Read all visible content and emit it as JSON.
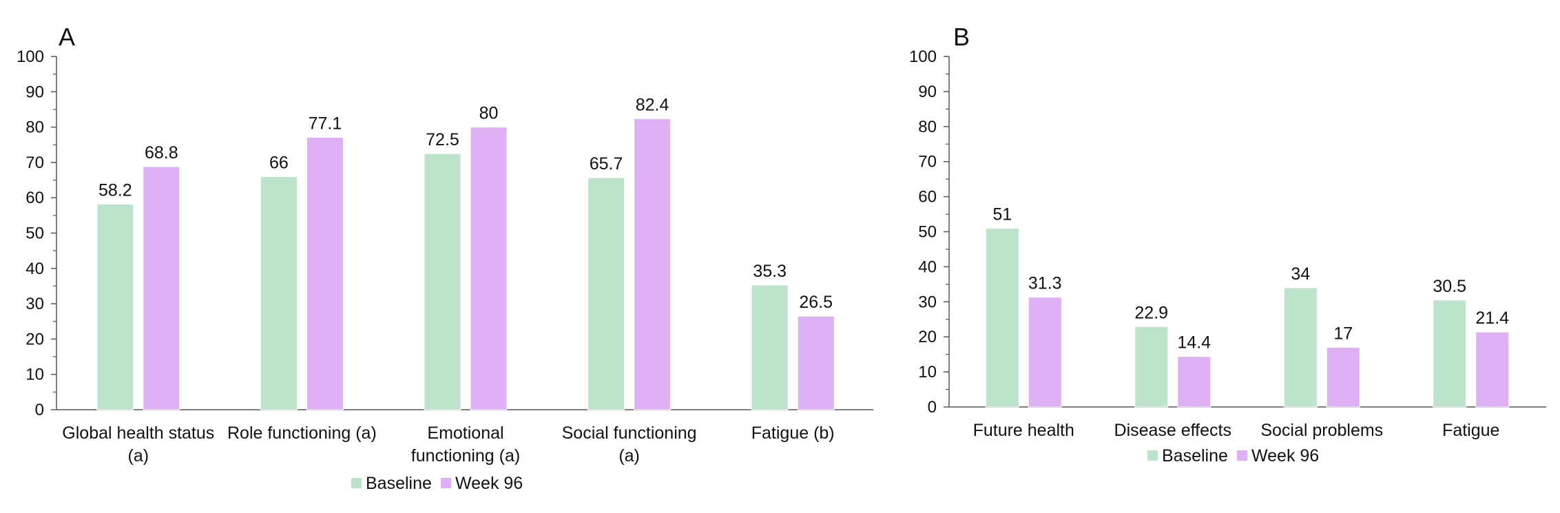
{
  "chart_data": [
    {
      "type": "bar",
      "panel_label": "A",
      "categories": [
        [
          "Global health status",
          "(a)"
        ],
        [
          "Role functioning (a)"
        ],
        [
          "Emotional",
          "functioning (a)"
        ],
        [
          "Social functioning",
          "(a)"
        ],
        [
          "Fatigue (b)"
        ]
      ],
      "series": [
        {
          "name": "Baseline",
          "values": [
            58.2,
            66,
            72.5,
            65.7,
            35.3
          ],
          "color": "#bde3ca"
        },
        {
          "name": "Week 96",
          "values": [
            68.8,
            77.1,
            80,
            82.4,
            26.5
          ],
          "color": "#deb0f4"
        }
      ],
      "ylim": [
        0,
        100
      ],
      "yticks": [
        0,
        10,
        20,
        30,
        40,
        50,
        60,
        70,
        80,
        90,
        100
      ],
      "grid": false,
      "legend": "bottom-center"
    },
    {
      "type": "bar",
      "panel_label": "B",
      "categories": [
        [
          "Future health"
        ],
        [
          "Disease effects"
        ],
        [
          "Social problems"
        ],
        [
          "Fatigue"
        ]
      ],
      "series": [
        {
          "name": "Baseline",
          "values": [
            51,
            22.9,
            34,
            30.5
          ],
          "color": "#bde3ca"
        },
        {
          "name": "Week 96",
          "values": [
            31.3,
            14.4,
            17,
            21.4
          ],
          "color": "#deb0f4"
        }
      ],
      "ylim": [
        0,
        100
      ],
      "yticks": [
        0,
        10,
        20,
        30,
        40,
        50,
        60,
        70,
        80,
        90,
        100
      ],
      "grid": false,
      "legend": "bottom-center"
    }
  ]
}
